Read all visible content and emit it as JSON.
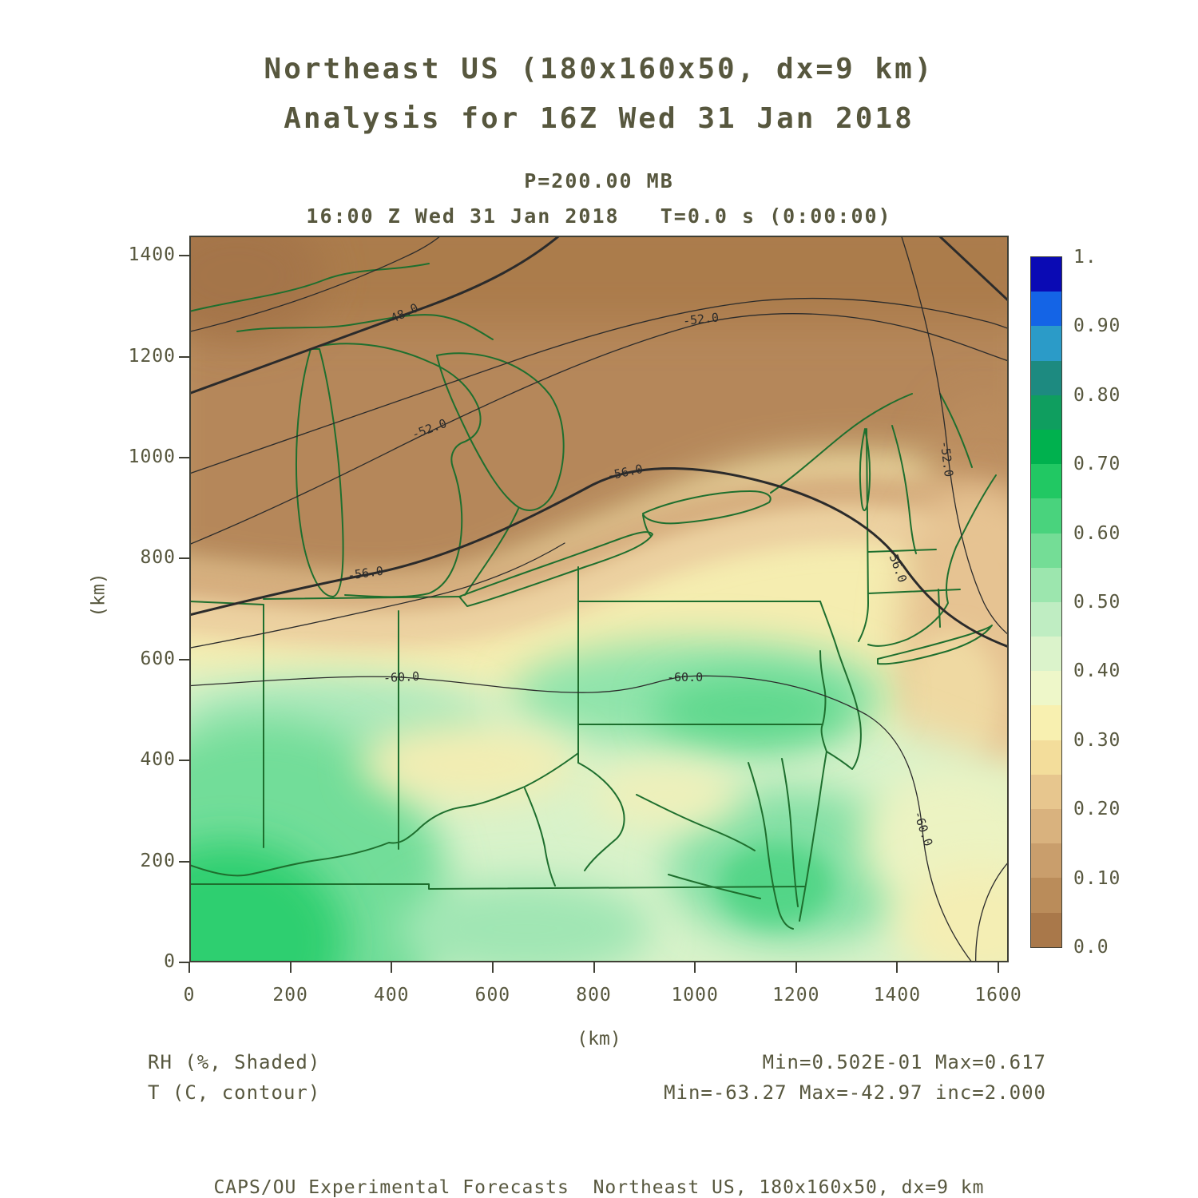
{
  "header": {
    "title_line1": "Northeast US (180x160x50, dx=9 km)",
    "title_line2": "Analysis for 16Z Wed 31 Jan 2018",
    "level_line": "P=200.00 MB",
    "time_line": "16:00 Z Wed 31 Jan 2018   T=0.0 s (0:00:00)"
  },
  "axes": {
    "x_label": "(km)",
    "y_label": "(km)",
    "x_ticks": [
      "0",
      "200",
      "400",
      "600",
      "800",
      "1000",
      "1200",
      "1400",
      "1600"
    ],
    "y_ticks": [
      "1400",
      "1200",
      "1000",
      "800",
      "600",
      "400",
      "200",
      "0"
    ]
  },
  "colorbar": {
    "tick_labels": [
      "1.",
      "0.90",
      "0.80",
      "0.70",
      "0.60",
      "0.50",
      "0.40",
      "0.30",
      "0.20",
      "0.10",
      "0.0"
    ],
    "colors_top_to_bottom": [
      "#0a0ab4",
      "#1464e6",
      "#2b9bc8",
      "#1d8a80",
      "#0f9e5f",
      "#00b14e",
      "#21c863",
      "#49d37d",
      "#74dd96",
      "#9ce6ae",
      "#bfedc2",
      "#dbf3cb",
      "#eef7c9",
      "#f8f0b0",
      "#f3dd9b",
      "#e7c68e",
      "#d9b27e",
      "#c99e6c",
      "#ba8c5a",
      "#a9784a"
    ]
  },
  "contours": {
    "m48": "-48.0",
    "m52a": "-52.0",
    "m52b": "-52.0",
    "m52c": "-52.0",
    "m56a": "-56.0",
    "m56b": "-56.0",
    "m56c": "-56.0",
    "m60a": "-60.0",
    "m60b": "-60.0",
    "m60c": "-60.0"
  },
  "footer": {
    "field1": "RH (%, Shaded)",
    "field2": "T (C, contour)",
    "stats1": "Min=0.502E-01 Max=0.617",
    "stats2": "Min=-63.27 Max=-42.97 inc=2.000"
  },
  "credit": "CAPS/OU Experimental Forecasts  Northeast US, 180x160x50, dx=9 km",
  "chart_data": {
    "type": "heatmap",
    "title": "Northeast US (180x160x50, dx=9 km)",
    "subtitle": "Analysis for 16Z Wed 31 Jan 2018",
    "level": "P=200.00 MB",
    "valid_time": "16:00 Z Wed 31 Jan 2018, T=0.0 s (0:00:00)",
    "xlabel": "(km)",
    "ylabel": "(km)",
    "xlim": [
      0,
      1620
    ],
    "ylim": [
      0,
      1440
    ],
    "x_ticks": [
      0,
      200,
      400,
      600,
      800,
      1000,
      1200,
      1400,
      1600
    ],
    "y_ticks": [
      0,
      200,
      400,
      600,
      800,
      1000,
      1200,
      1400
    ],
    "shaded_field": {
      "name": "RH",
      "units": "%",
      "min": 0.0502,
      "max": 0.617
    },
    "contour_field": {
      "name": "T",
      "units": "C",
      "min": -63.27,
      "max": -42.97,
      "interval": 2.0,
      "labeled_values": [
        -48.0,
        -52.0,
        -56.0,
        -60.0
      ]
    },
    "colorbar_ticks": [
      0.0,
      0.1,
      0.2,
      0.3,
      0.4,
      0.5,
      0.6,
      0.7,
      0.8,
      0.9,
      1.0
    ],
    "legend_position": "right",
    "grid": false,
    "pattern": "Dry air (RH 0.0-0.2, brown/tan shading) covers the north of the domain (upper Great Lakes, Ontario, upstate New York, New England) and a coastal tongue along the mid-Atlantic; moist air (RH 0.3-0.6, yellow to green shading) covers the Ohio Valley, Pennsylvania, Virginia and the southwest corner; temperature contours run roughly west-east decreasing northward: -60 C across the south, -56 C mid-domain, -52 C and -48 C across the north, with a trough dipping in the northeast corner"
  }
}
